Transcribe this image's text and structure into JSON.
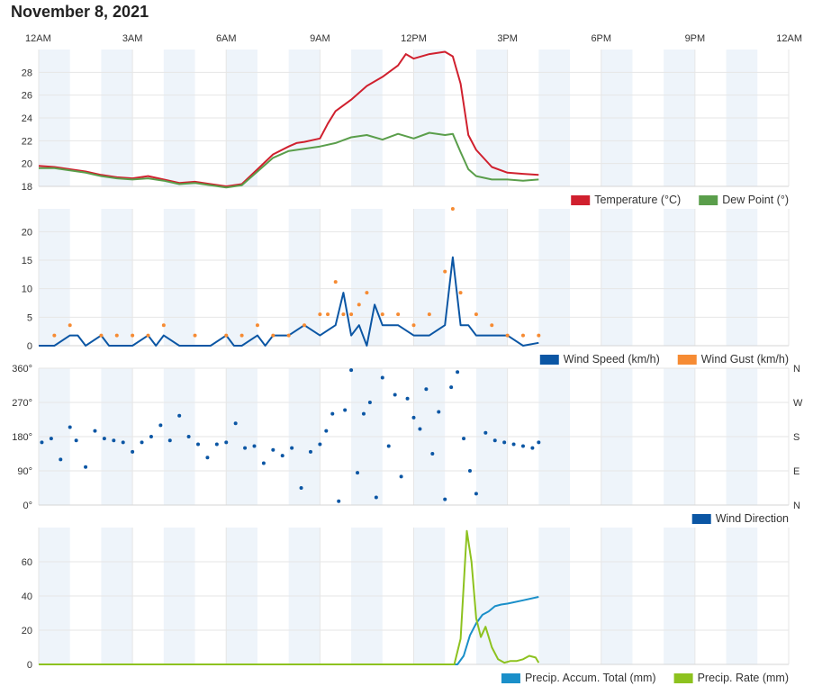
{
  "page": {
    "title": "November 8, 2021"
  },
  "time_axis": {
    "labels": [
      "12AM",
      "3AM",
      "6AM",
      "9AM",
      "12PM",
      "3PM",
      "6PM",
      "9PM",
      "12AM"
    ],
    "range_hours": [
      0,
      24
    ]
  },
  "colors": {
    "temperature": "#d0202e",
    "dew_point": "#5a9e4b",
    "wind_speed": "#0b56a4",
    "wind_gust": "#f68b33",
    "wind_direction": "#0b56a4",
    "precip_accum": "#1a8fc9",
    "precip_rate": "#8dc21f",
    "band": "#eef4fa",
    "grid": "#e6e6e6"
  },
  "chart_data": [
    {
      "type": "line",
      "name": "temperature-chart",
      "ylim": [
        18,
        30
      ],
      "yticks": [
        "18",
        "20",
        "22",
        "24",
        "26",
        "28"
      ],
      "series": [
        {
          "name": "Temperature (°C)",
          "key": "temperature",
          "x": [
            0,
            0.5,
            1,
            1.5,
            2,
            2.5,
            3,
            3.5,
            4,
            4.5,
            5,
            5.5,
            6,
            6.5,
            7,
            7.5,
            8,
            8.25,
            8.5,
            9,
            9.25,
            9.5,
            10,
            10.5,
            11,
            11.5,
            11.75,
            12,
            12.5,
            13,
            13.25,
            13.5,
            13.75,
            14,
            14.5,
            15,
            15.5,
            16
          ],
          "values": [
            19.8,
            19.7,
            19.5,
            19.3,
            19.0,
            18.8,
            18.7,
            18.9,
            18.6,
            18.3,
            18.4,
            18.2,
            18.0,
            18.2,
            19.5,
            20.8,
            21.5,
            21.8,
            21.9,
            22.2,
            23.5,
            24.6,
            25.6,
            26.8,
            27.6,
            28.6,
            29.6,
            29.2,
            29.6,
            29.8,
            29.4,
            27.0,
            22.5,
            21.2,
            19.7,
            19.2,
            19.1,
            19.0
          ]
        },
        {
          "name": "Dew Point (°)",
          "key": "dew_point",
          "x": [
            0,
            0.5,
            1,
            1.5,
            2,
            2.5,
            3,
            3.5,
            4,
            4.5,
            5,
            5.5,
            6,
            6.5,
            7,
            7.5,
            8,
            8.25,
            8.5,
            9,
            9.5,
            10,
            10.5,
            11,
            11.5,
            12,
            12.5,
            13,
            13.25,
            13.5,
            13.75,
            14,
            14.5,
            15,
            15.5,
            16
          ],
          "values": [
            19.6,
            19.6,
            19.4,
            19.2,
            18.9,
            18.7,
            18.6,
            18.7,
            18.5,
            18.2,
            18.3,
            18.1,
            17.9,
            18.1,
            19.3,
            20.5,
            21.1,
            21.2,
            21.3,
            21.5,
            21.8,
            22.3,
            22.5,
            22.1,
            22.6,
            22.2,
            22.7,
            22.5,
            22.6,
            21.0,
            19.5,
            18.9,
            18.6,
            18.6,
            18.5,
            18.6
          ]
        }
      ],
      "legend": [
        "Temperature (°C)",
        "Dew Point (°)"
      ]
    },
    {
      "type": "line",
      "name": "wind-speed-chart",
      "ylim": [
        0,
        24
      ],
      "yticks": [
        "0",
        "5",
        "10",
        "15",
        "20"
      ],
      "series": [
        {
          "name": "Wind Speed (km/h)",
          "key": "wind_speed",
          "x": [
            0,
            0.5,
            1,
            1.25,
            1.5,
            2,
            2.25,
            2.5,
            3,
            3.5,
            3.75,
            4,
            4.5,
            5,
            5.5,
            6,
            6.25,
            6.5,
            7,
            7.25,
            7.5,
            8,
            8.5,
            9,
            9.5,
            9.75,
            10,
            10.25,
            10.5,
            10.75,
            11,
            11.5,
            12,
            12.5,
            13,
            13.25,
            13.5,
            13.75,
            14,
            14.5,
            15,
            15.5,
            16
          ],
          "values": [
            0,
            0,
            1.8,
            1.8,
            0,
            1.8,
            0,
            0,
            0,
            1.8,
            0,
            1.8,
            0,
            0,
            0,
            1.8,
            0,
            0,
            1.8,
            0,
            1.8,
            1.8,
            3.6,
            1.8,
            3.6,
            9.3,
            1.8,
            3.6,
            0,
            7.2,
            3.6,
            3.6,
            1.8,
            1.8,
            3.6,
            15.5,
            3.6,
            3.6,
            1.8,
            1.8,
            1.8,
            0,
            0.5
          ]
        },
        {
          "name": "Wind Gust (km/h)",
          "key": "wind_gust",
          "x": [
            0.5,
            1,
            2,
            2.5,
            3,
            3.5,
            4,
            5,
            6,
            6.5,
            7,
            7.5,
            8,
            8.5,
            9,
            9.25,
            9.5,
            9.75,
            10,
            10.25,
            10.5,
            11,
            11.5,
            12,
            12.5,
            13,
            13.25,
            13.5,
            14,
            14.5,
            15,
            15.5,
            16
          ],
          "values": [
            1.8,
            3.6,
            1.8,
            1.8,
            1.8,
            1.8,
            3.6,
            1.8,
            1.8,
            1.8,
            3.6,
            1.8,
            1.8,
            3.6,
            5.5,
            5.5,
            11.2,
            5.5,
            5.5,
            7.2,
            9.3,
            5.5,
            5.5,
            3.6,
            5.5,
            13.0,
            24.0,
            9.3,
            5.5,
            3.6,
            1.8,
            1.8,
            1.8
          ]
        }
      ],
      "legend": [
        "Wind Speed (km/h)",
        "Wind Gust (km/h)"
      ]
    },
    {
      "type": "scatter",
      "name": "wind-direction-chart",
      "ylim": [
        0,
        360
      ],
      "yticks": [
        "0°",
        "90°",
        "180°",
        "270°",
        "360°"
      ],
      "right_ticks": [
        "N",
        "E",
        "S",
        "W",
        "N"
      ],
      "series": [
        {
          "name": "Wind Direction",
          "key": "wind_direction",
          "x": [
            0.1,
            0.4,
            0.7,
            1.0,
            1.2,
            1.5,
            1.8,
            2.1,
            2.4,
            2.7,
            3.0,
            3.3,
            3.6,
            3.9,
            4.2,
            4.5,
            4.8,
            5.1,
            5.4,
            5.7,
            6.0,
            6.3,
            6.6,
            6.9,
            7.2,
            7.5,
            7.8,
            8.1,
            8.4,
            8.7,
            9.0,
            9.2,
            9.4,
            9.6,
            9.8,
            10.0,
            10.2,
            10.4,
            10.6,
            10.8,
            11.0,
            11.2,
            11.4,
            11.6,
            11.8,
            12.0,
            12.2,
            12.4,
            12.6,
            12.8,
            13.0,
            13.2,
            13.4,
            13.6,
            13.8,
            14.0,
            14.3,
            14.6,
            14.9,
            15.2,
            15.5,
            15.8,
            16.0
          ],
          "values": [
            165,
            175,
            120,
            205,
            170,
            100,
            195,
            175,
            170,
            165,
            140,
            165,
            180,
            210,
            170,
            235,
            180,
            160,
            125,
            160,
            165,
            215,
            150,
            155,
            110,
            145,
            130,
            150,
            45,
            140,
            160,
            195,
            240,
            10,
            250,
            355,
            85,
            240,
            270,
            20,
            335,
            155,
            290,
            75,
            280,
            230,
            200,
            305,
            135,
            245,
            15,
            310,
            350,
            175,
            90,
            30,
            190,
            170,
            165,
            160,
            155,
            150,
            165
          ]
        }
      ],
      "legend": [
        "Wind Direction"
      ]
    },
    {
      "type": "line",
      "name": "precipitation-chart",
      "ylim": [
        0,
        80
      ],
      "yticks": [
        "0",
        "20",
        "40",
        "60"
      ],
      "series": [
        {
          "name": "Precip. Accum. Total (mm)",
          "key": "precip_accum",
          "x": [
            0,
            13.4,
            13.6,
            13.8,
            14.0,
            14.2,
            14.4,
            14.6,
            14.8,
            15.0,
            15.5,
            16.0
          ],
          "values": [
            0,
            0,
            5,
            17,
            24,
            29,
            31,
            34,
            35,
            35.5,
            37.5,
            39.5
          ]
        },
        {
          "name": "Precip. Rate (mm)",
          "key": "precip_rate",
          "x": [
            0,
            13.3,
            13.5,
            13.7,
            13.85,
            14.0,
            14.15,
            14.3,
            14.5,
            14.7,
            14.9,
            15.1,
            15.3,
            15.5,
            15.7,
            15.9,
            16.0
          ],
          "values": [
            0,
            0,
            15,
            78,
            60,
            27,
            16,
            22,
            10,
            3,
            1,
            2,
            2,
            3,
            5,
            4,
            1
          ]
        }
      ],
      "legend": [
        "Precip. Accum. Total (mm)",
        "Precip. Rate (mm)"
      ]
    }
  ]
}
